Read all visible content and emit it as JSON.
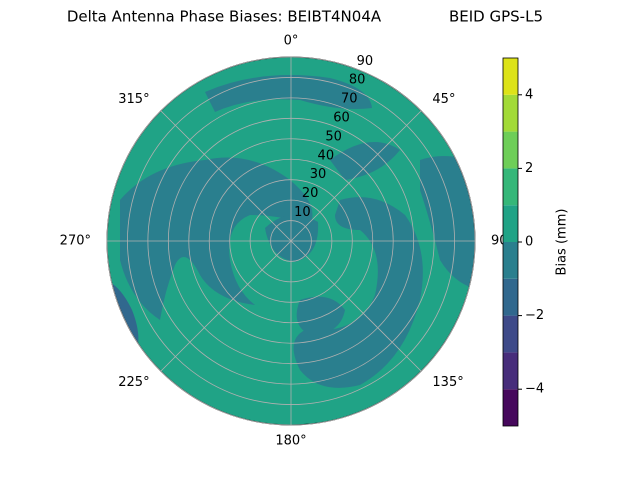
{
  "chart_data": {
    "type": "polar_contour",
    "title": "Delta Antenna Phase Biases: BEIBT4N04A",
    "subtitle": "BEID GPS-L5",
    "rlim": [
      0,
      90
    ],
    "rticks": [
      10,
      20,
      30,
      40,
      50,
      60,
      70,
      80,
      90
    ],
    "thetaticks": [
      {
        "value": 0,
        "label": "0°"
      },
      {
        "value": 45,
        "label": "45°"
      },
      {
        "value": 90,
        "label": "90°"
      },
      {
        "value": 135,
        "label": "135°"
      },
      {
        "value": 180,
        "label": "180°"
      },
      {
        "value": 225,
        "label": "225°"
      },
      {
        "value": 270,
        "label": "270°"
      },
      {
        "value": 315,
        "label": "315°"
      }
    ],
    "grid": true,
    "colorbar": {
      "label": "Bias (mm)",
      "levels": [
        -5,
        -4,
        -3,
        -2,
        -1,
        0,
        1,
        2,
        3,
        4,
        5
      ],
      "colors": [
        "#46085c",
        "#472d7b",
        "#3e4a89",
        "#31688e",
        "#2a7f8e",
        "#20a386",
        "#35b779",
        "#6ece58",
        "#a2da37",
        "#dde318"
      ],
      "ticks": [
        {
          "value": -4,
          "label": "−4"
        },
        {
          "value": -2,
          "label": "−2"
        },
        0,
        2,
        4
      ]
    }
  }
}
